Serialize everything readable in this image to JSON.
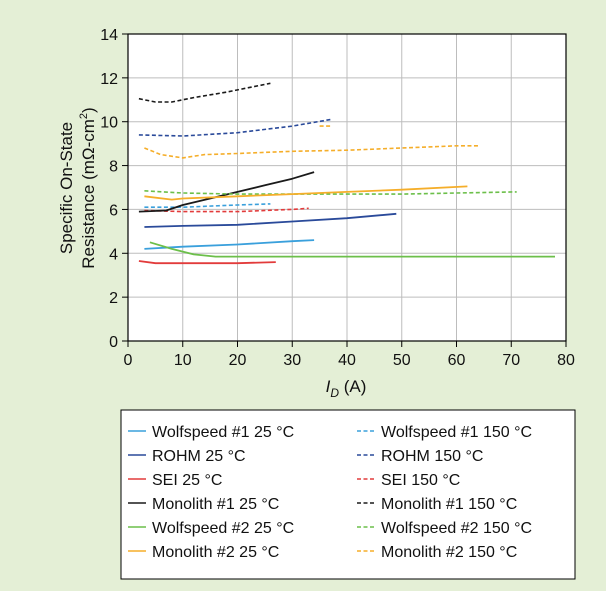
{
  "chart_data": {
    "type": "line",
    "xlabel": {
      "main": "I",
      "sub": "D",
      "unit": " (A)"
    },
    "ylabel": {
      "line1": "Specific On-State",
      "line2": "Resistance (mΩ-cm",
      "sup": "2",
      "close": ")"
    },
    "xlim": [
      0,
      80
    ],
    "ylim": [
      0,
      14
    ],
    "xticks": [
      "0",
      "10",
      "20",
      "30",
      "40",
      "50",
      "60",
      "70",
      "80"
    ],
    "yticks": [
      "0",
      "2",
      "4",
      "6",
      "8",
      "10",
      "12",
      "14"
    ],
    "grid": true,
    "legend_position": "bottom",
    "series": [
      {
        "name": "Wolfspeed #1 25 °C",
        "color": "#3aa0dc",
        "dash": false,
        "x": [
          3,
          10,
          20,
          30,
          34
        ],
        "y": [
          4.2,
          4.3,
          4.4,
          4.55,
          4.6
        ]
      },
      {
        "name": "Wolfspeed #1 150 °C",
        "color": "#3aa0dc",
        "dash": true,
        "x": [
          3,
          10,
          20,
          26
        ],
        "y": [
          6.1,
          6.1,
          6.2,
          6.25
        ]
      },
      {
        "name": "ROHM 25 °C",
        "color": "#2a4a9a",
        "dash": false,
        "x": [
          3,
          10,
          20,
          30,
          40,
          49
        ],
        "y": [
          5.2,
          5.25,
          5.3,
          5.45,
          5.6,
          5.8
        ]
      },
      {
        "name": "ROHM 150 °C",
        "color": "#2a4a9a",
        "dash": true,
        "x": [
          2,
          10,
          20,
          30,
          37
        ],
        "y": [
          9.4,
          9.35,
          9.5,
          9.8,
          10.1
        ]
      },
      {
        "name": "SEI 25 °C",
        "color": "#e23b3b",
        "dash": false,
        "x": [
          2,
          5,
          10,
          20,
          27
        ],
        "y": [
          3.65,
          3.55,
          3.55,
          3.55,
          3.6
        ]
      },
      {
        "name": "SEI 150 °C",
        "color": "#e23b3b",
        "dash": true,
        "x": [
          3,
          10,
          20,
          30,
          33
        ],
        "y": [
          5.95,
          5.9,
          5.9,
          6.0,
          6.05
        ]
      },
      {
        "name": "Monolith #1 25 °C",
        "color": "#1a1a1a",
        "dash": false,
        "x": [
          2,
          7,
          10,
          15,
          20,
          25,
          30,
          34
        ],
        "y": [
          5.9,
          5.95,
          6.2,
          6.5,
          6.8,
          7.1,
          7.4,
          7.7
        ]
      },
      {
        "name": "Monolith #1 150 °C",
        "color": "#1a1a1a",
        "dash": true,
        "x": [
          2,
          5,
          8,
          12,
          18,
          22,
          26
        ],
        "y": [
          11.05,
          10.9,
          10.9,
          11.1,
          11.35,
          11.55,
          11.75
        ]
      },
      {
        "name": "Wolfspeed #2 25 °C",
        "color": "#6cbf4a",
        "dash": false,
        "x": [
          4,
          8,
          12,
          16,
          20,
          30,
          40,
          50,
          60,
          70,
          78
        ],
        "y": [
          4.5,
          4.2,
          3.95,
          3.85,
          3.85,
          3.85,
          3.85,
          3.85,
          3.85,
          3.85,
          3.85
        ]
      },
      {
        "name": "Wolfspeed #2 150 °C",
        "color": "#6cbf4a",
        "dash": true,
        "x": [
          3,
          10,
          20,
          30,
          40,
          50,
          60,
          71
        ],
        "y": [
          6.85,
          6.75,
          6.7,
          6.7,
          6.7,
          6.7,
          6.75,
          6.8
        ]
      },
      {
        "name": "Monolith #2 25 °C",
        "color": "#f5ae2a",
        "dash": false,
        "x": [
          3,
          8,
          10,
          20,
          30,
          40,
          50,
          62
        ],
        "y": [
          6.6,
          6.45,
          6.5,
          6.6,
          6.7,
          6.8,
          6.9,
          7.05
        ]
      },
      {
        "name": "Monolith #2 150 °C",
        "color": "#f5ae2a",
        "dash": true,
        "x": [
          3,
          6,
          10,
          14,
          20,
          30,
          40,
          50,
          60,
          64
        ],
        "y": [
          8.8,
          8.5,
          8.35,
          8.5,
          8.55,
          8.65,
          8.7,
          8.8,
          8.9,
          8.9
        ]
      },
      {
        "name": "",
        "color": "#f5ae2a",
        "dash": true,
        "x": [
          35,
          37
        ],
        "y": [
          9.8,
          9.8
        ]
      }
    ]
  }
}
